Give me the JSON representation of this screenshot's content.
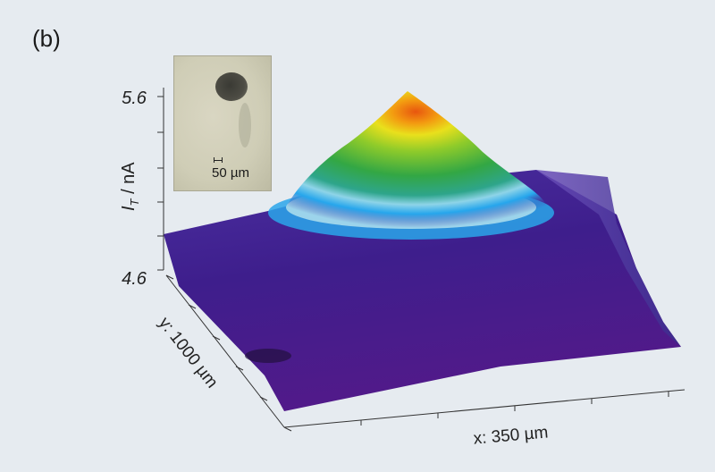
{
  "panel_label": "(b)",
  "inset": {
    "scale_label": "50 µm"
  },
  "chart_data": {
    "type": "surface3d",
    "title": "",
    "zlabel_main": "I",
    "zlabel_sub": "T",
    "zlabel_unit": " / nA",
    "xlabel": "x: 350 µm",
    "ylabel": "y: 1000 µm",
    "zlim": [
      4.6,
      5.6
    ],
    "z_ticks": [
      "5.6",
      "4.6"
    ],
    "baseline": 4.75,
    "peak": {
      "x_frac": 0.58,
      "y_frac": 0.32,
      "z": 5.6
    },
    "colormap": [
      "#3d0c7a",
      "#4a2d9a",
      "#2fa6e8",
      "#7fd3f0",
      "#2ea84a",
      "#7bc728",
      "#e8df1c",
      "#f08a12",
      "#e85a10"
    ]
  }
}
